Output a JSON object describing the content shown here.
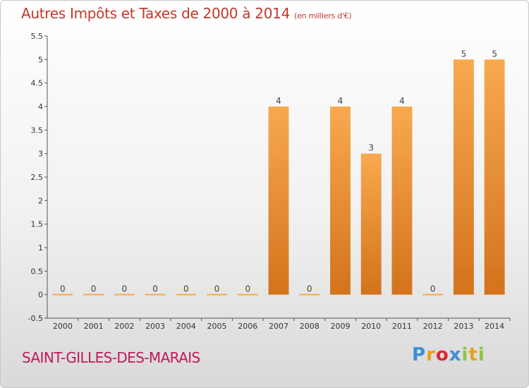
{
  "header": {
    "title": "Autres Impôts et Taxes de 2000 à 2014",
    "subtitle": "(en milliers d'€)"
  },
  "footer": {
    "town": "SAINT-GILLES-DES-MARAIS",
    "logo_letters": [
      "P",
      "r",
      "o",
      "x",
      "i",
      "t",
      "i"
    ],
    "logo_colors": [
      "#3b8fd6",
      "#e8a21a",
      "#d9282f",
      "#3b8fd6",
      "#8cc63f",
      "#e8a21a",
      "#8cc63f"
    ]
  },
  "colors": {
    "bar_light": "#f8a94f",
    "bar_dark": "#d3731c",
    "title": "#c0392b",
    "town": "#c2185b"
  },
  "chart_data": {
    "type": "bar",
    "title": "Autres Impôts et Taxes de 2000 à 2014",
    "subtitle": "(en milliers d'€)",
    "categories": [
      "2000",
      "2001",
      "2002",
      "2003",
      "2004",
      "2005",
      "2006",
      "2007",
      "2008",
      "2009",
      "2010",
      "2011",
      "2012",
      "2013",
      "2014"
    ],
    "values": [
      0,
      0,
      0,
      0,
      0,
      0,
      0,
      4,
      0,
      4,
      3,
      4,
      0,
      5,
      5
    ],
    "value_labels": [
      "0",
      "0",
      "0",
      "0",
      "0",
      "0",
      "0",
      "4",
      "0",
      "4",
      "3",
      "4",
      "0",
      "5",
      "5"
    ],
    "ylim": [
      -0.5,
      5.5
    ],
    "yticks": [
      -0.5,
      0,
      0.5,
      1,
      1.5,
      2,
      2.5,
      3,
      3.5,
      4,
      4.5,
      5,
      5.5
    ],
    "ytick_labels": [
      "-0.5",
      "0",
      "0.5",
      "1",
      "1.5",
      "2",
      "2.5",
      "3",
      "3.5",
      "4",
      "4.5",
      "5",
      "5.5"
    ],
    "grid": false,
    "xlabel": "",
    "ylabel": ""
  }
}
